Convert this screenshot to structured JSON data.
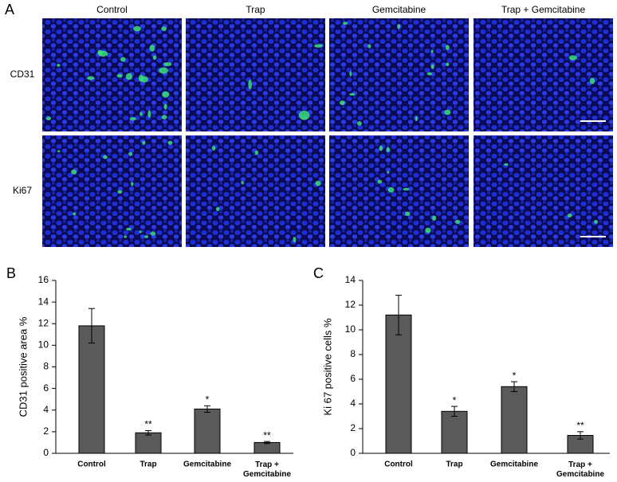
{
  "panel_a": {
    "letter": "A",
    "columns": [
      "Control",
      "Trap",
      "Gemcitabine",
      "Trap + Gemcitabine"
    ],
    "rows": [
      "CD31",
      "Ki67"
    ]
  },
  "chart_data": [
    {
      "type": "bar",
      "letter": "B",
      "y_label": "CD31 positive area  %",
      "categories": [
        "Control",
        "Trap",
        "Gemcitabine",
        "Trap +\nGemcitabine"
      ],
      "values": [
        11.8,
        1.9,
        4.1,
        1.0
      ],
      "errors": [
        1.6,
        0.2,
        0.3,
        0.1
      ],
      "bar_labels": [
        null,
        "**",
        "*",
        "**"
      ],
      "color": "#5a5a5a",
      "ylim": [
        0,
        16
      ],
      "yticks": [
        0,
        2,
        4,
        6,
        8,
        10,
        12,
        14,
        16
      ]
    },
    {
      "type": "bar",
      "letter": "C",
      "y_label": "Ki 67 positive cells  %",
      "categories": [
        "Control",
        "Trap",
        "Gemcitabine",
        "Trap +\nGemcitabine"
      ],
      "values": [
        11.2,
        3.4,
        5.4,
        1.45
      ],
      "errors": [
        1.6,
        0.4,
        0.4,
        0.3
      ],
      "bar_labels": [
        null,
        "*",
        "*",
        "**"
      ],
      "color": "#5a5a5a",
      "ylim": [
        0,
        14
      ],
      "yticks": [
        0,
        2,
        4,
        6,
        8,
        10,
        12,
        14
      ]
    }
  ]
}
